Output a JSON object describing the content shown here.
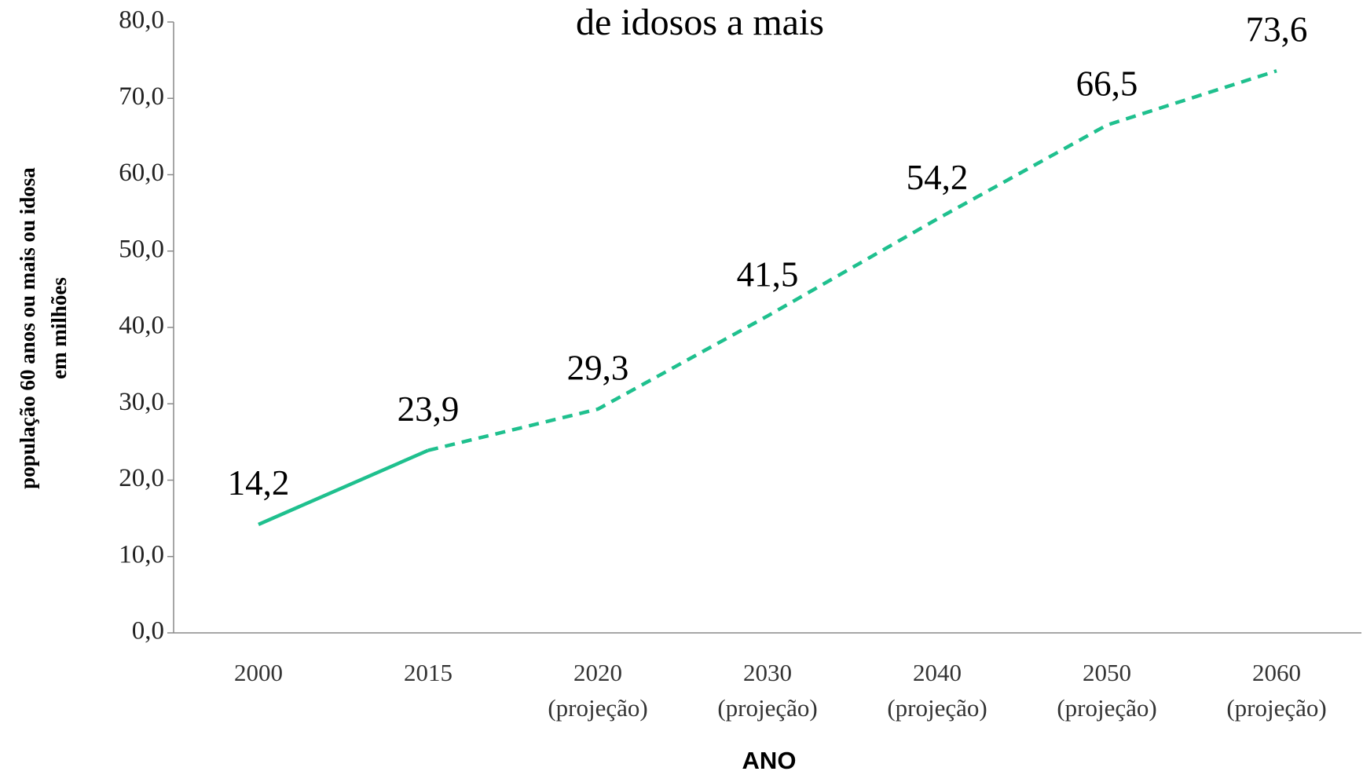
{
  "chart_data": {
    "type": "line",
    "title": "de idosos a mais",
    "y_label": [
      "população 60 anos ou mais ou idosa",
      "em milhões"
    ],
    "x_label": "ANO",
    "categories": [
      [
        "2000"
      ],
      [
        "2015"
      ],
      [
        "2020",
        "(projeção)"
      ],
      [
        "2030",
        "(projeção)"
      ],
      [
        "2040",
        "(projeção)"
      ],
      [
        "2050",
        "(projeção)"
      ],
      [
        "2060",
        "(projeção)"
      ]
    ],
    "series": [
      {
        "color": "#1fc08e",
        "values": [
          14.2,
          23.9,
          29.3,
          41.5,
          54.2,
          66.5,
          73.6
        ],
        "value_labels": [
          "14,2",
          "23,9",
          "29,3",
          "41,5",
          "54,2",
          "66,5",
          "73,6"
        ],
        "dash_start_index": 1
      }
    ],
    "ylim": [
      0,
      80
    ],
    "yticks": [
      {
        "value": 0,
        "label": "0,0"
      },
      {
        "value": 10,
        "label": "10,0"
      },
      {
        "value": 20,
        "label": "20,0"
      },
      {
        "value": 30,
        "label": "30,0"
      },
      {
        "value": 40,
        "label": "40,0"
      },
      {
        "value": 50,
        "label": "50,0"
      },
      {
        "value": 60,
        "label": "60,0"
      },
      {
        "value": 70,
        "label": "70,0"
      },
      {
        "value": 80,
        "label": "80,0"
      }
    ],
    "grid": false
  }
}
